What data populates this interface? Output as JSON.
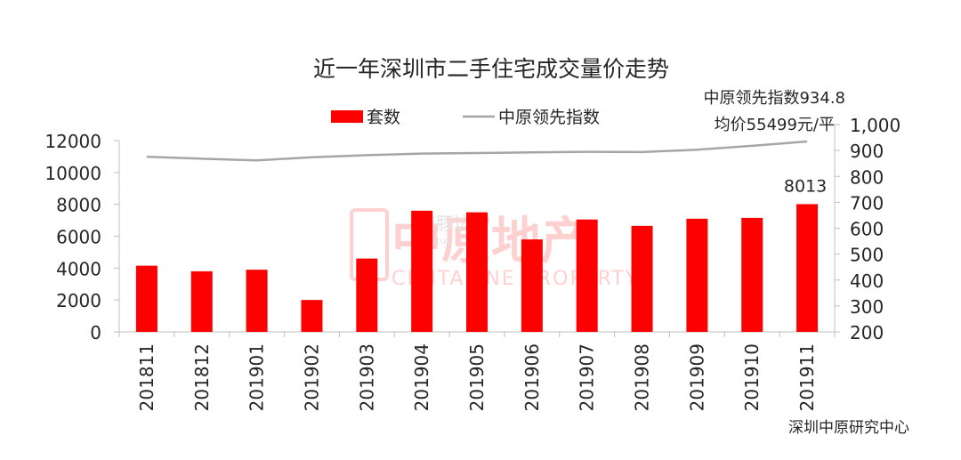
{
  "chart_data": {
    "type": "bar+line",
    "title": "近一年深圳市二手住宅成交量价走势",
    "categories": [
      "201811",
      "201812",
      "201901",
      "201902",
      "201903",
      "201904",
      "201905",
      "201906",
      "201907",
      "201908",
      "201909",
      "201910",
      "201911"
    ],
    "series": [
      {
        "name": "套数",
        "type": "bar",
        "axis": "left",
        "color": "#ff0000",
        "values": [
          4150,
          3800,
          3900,
          2000,
          4600,
          7600,
          7500,
          5800,
          7050,
          6650,
          7100,
          7150,
          8013
        ]
      },
      {
        "name": "中原领先指数",
        "type": "line",
        "axis": "right",
        "color": "#a6a6a6",
        "values": [
          876,
          868,
          862,
          874,
          882,
          888,
          890,
          893,
          895,
          894,
          903,
          918,
          934.8
        ]
      }
    ],
    "left_axis": {
      "min": 0,
      "max": 12000,
      "ticks": [
        "0",
        "2000",
        "4000",
        "6000",
        "8000",
        "10000",
        "12000"
      ]
    },
    "right_axis": {
      "min": 200,
      "max": 1000,
      "ticks": [
        "200",
        "300",
        "400",
        "500",
        "600",
        "700",
        "800",
        "900",
        "1,000"
      ]
    },
    "legend": {
      "position": "top",
      "items": [
        "套数",
        "中原领先指数"
      ]
    },
    "annotations": {
      "bar_label": "8013",
      "index_label": "中原领先指数934.8",
      "price_label": "均价55499元/平"
    },
    "watermark": {
      "cn": "中原地产",
      "en": "CENTALINE PROPERTY",
      "overlay": "海豚边",
      "overlay_en": "Haitun"
    },
    "source": "深圳中原研究中心"
  }
}
